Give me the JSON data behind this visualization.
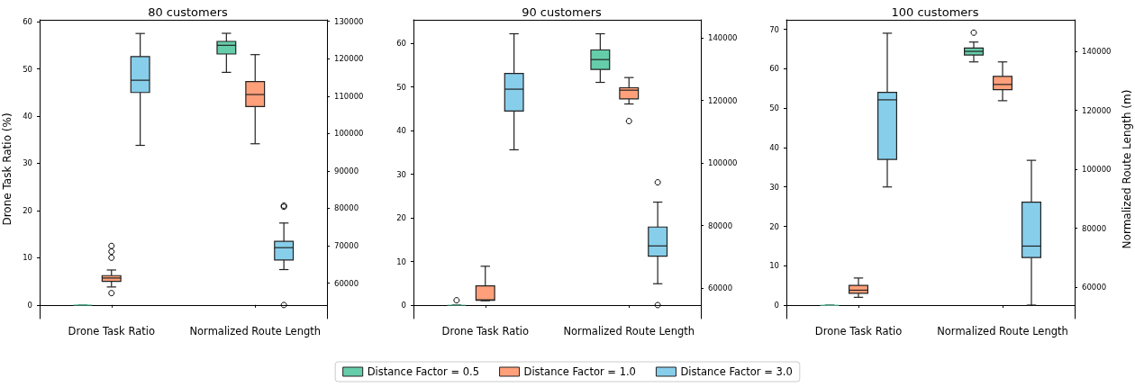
{
  "chart_data": [
    {
      "type": "box",
      "title": "80 customers",
      "ylabel": "Drone Task Ratio (%)",
      "categories": [
        "Drone Task Ratio",
        "Normalized Route Length"
      ],
      "ylim": [
        -2.9,
        60.4
      ],
      "yticks": [
        0,
        10,
        20,
        30,
        40,
        50,
        60
      ],
      "y2lim": [
        50500,
        130400
      ],
      "y2ticks": [
        60000,
        70000,
        80000,
        90000,
        100000,
        110000,
        120000,
        130000
      ],
      "legend": "bottom",
      "series": [
        {
          "name": "Distance Factor = 0.5",
          "color": "#66cdaa",
          "boxes": [
            {
              "low": 0,
              "q1": 0,
              "median": 0,
              "q3": 0,
              "high": 0
            },
            null
          ]
        },
        {
          "name": "Distance Factor = 1.0",
          "color": "#ffa07a",
          "boxes": [
            {
              "low": 3.8,
              "q1": 5.0,
              "median": 5.7,
              "q3": 6.2,
              "high": 7.4,
              "outliers": [
                2.5,
                10.0,
                11.3,
                12.5
              ]
            },
            null
          ]
        },
        {
          "name": "Distance Factor = 3.0",
          "color": "#87ceeb",
          "boxes": [
            {
              "low": 33.8,
              "q1": 45.0,
              "median": 47.6,
              "q3": 52.6,
              "high": 57.5
            },
            null
          ]
        },
        {
          "color": "#66cdaa",
          "axis": "y2",
          "boxes": [
            null,
            {
              "low": 116350,
              "q1": 121250,
              "median": 123580,
              "q3": 124620,
              "high": 126790
            }
          ]
        },
        {
          "color": "#ffa07a",
          "axis": "y2",
          "boxes": [
            null,
            {
              "low": 97250,
              "q1": 107200,
              "median": 110410,
              "q3": 113870,
              "high": 121090
            }
          ]
        },
        {
          "color": "#87ceeb",
          "axis": "y2",
          "boxes": [
            null,
            {
              "low": 63610,
              "q1": 66180,
              "median": 69470,
              "q3": 71160,
              "high": 76060,
              "outliers": [
                54140,
                80400,
                80700
              ]
            }
          ]
        }
      ]
    },
    {
      "type": "box",
      "title": "90 customers",
      "categories": [
        "Drone Task Ratio",
        "Normalized Route Length"
      ],
      "ylim": [
        -3.1,
        65.4
      ],
      "yticks": [
        0,
        10,
        20,
        30,
        40,
        50,
        60
      ],
      "y2lim": [
        50300,
        145800
      ],
      "y2ticks": [
        60000,
        80000,
        100000,
        120000,
        140000
      ],
      "series": [
        {
          "color": "#66cdaa",
          "boxes": [
            {
              "low": 0,
              "q1": 0,
              "median": 0,
              "q3": 0,
              "high": 0,
              "outliers": [
                1.1
              ]
            },
            null
          ]
        },
        {
          "color": "#ffa07a",
          "boxes": [
            {
              "low": 1.0,
              "q1": 1.1,
              "median": 1.2,
              "q3": 4.4,
              "high": 8.9
            },
            null
          ]
        },
        {
          "color": "#87ceeb",
          "boxes": [
            {
              "low": 35.6,
              "q1": 44.5,
              "median": 49.5,
              "q3": 53.1,
              "high": 62.2
            },
            null
          ]
        },
        {
          "color": "#66cdaa",
          "axis": "y2",
          "boxes": [
            null,
            {
              "low": 125800,
              "q1": 129930,
              "median": 133090,
              "q3": 136160,
              "high": 141340
            }
          ]
        },
        {
          "color": "#ffa07a",
          "axis": "y2",
          "boxes": [
            null,
            {
              "low": 118900,
              "q1": 120530,
              "median": 123310,
              "q3": 124080,
              "high": 127340,
              "outliers": [
                113430
              ]
            }
          ]
        },
        {
          "color": "#87ceeb",
          "axis": "y2",
          "boxes": [
            null,
            {
              "low": 61440,
              "q1": 70260,
              "median": 73530,
              "q3": 79570,
              "high": 87530,
              "outliers": [
                54630,
                93860
              ]
            }
          ]
        }
      ]
    },
    {
      "type": "box",
      "title": "100 customers",
      "y2label": "Normalized Route Length (m)",
      "categories": [
        "Drone Task Ratio",
        "Normalized Route Length"
      ],
      "ylim": [
        -3.4,
        72.4
      ],
      "yticks": [
        0,
        10,
        20,
        30,
        40,
        50,
        60,
        70
      ],
      "y2lim": [
        49400,
        150700
      ],
      "y2ticks": [
        60000,
        80000,
        100000,
        120000,
        140000
      ],
      "series": [
        {
          "color": "#66cdaa",
          "boxes": [
            {
              "low": 0,
              "q1": 0,
              "median": 0,
              "q3": 0,
              "high": 0
            },
            null
          ]
        },
        {
          "color": "#ffa07a",
          "boxes": [
            {
              "low": 2.0,
              "q1": 3.0,
              "median": 3.8,
              "q3": 5.0,
              "high": 6.9
            },
            null
          ]
        },
        {
          "color": "#87ceeb",
          "boxes": [
            {
              "low": 30.0,
              "q1": 37.0,
              "median": 52.1,
              "q3": 54.0,
              "high": 69.0
            },
            null
          ]
        },
        {
          "color": "#66cdaa",
          "axis": "y2",
          "boxes": [
            null,
            {
              "low": 136430,
              "q1": 138780,
              "median": 140000,
              "q3": 141120,
              "high": 143160,
              "outliers": [
                146330
              ]
            }
          ]
        },
        {
          "color": "#ffa07a",
          "axis": "y2",
          "boxes": [
            null,
            {
              "low": 123270,
              "q1": 127040,
              "median": 128780,
              "q3": 131530,
              "high": 136430
            }
          ]
        },
        {
          "color": "#87ceeb",
          "axis": "y2",
          "boxes": [
            null,
            {
              "low": 53980,
              "q1": 70100,
              "median": 73980,
              "q3": 88880,
              "high": 103060
            }
          ]
        }
      ]
    }
  ]
}
